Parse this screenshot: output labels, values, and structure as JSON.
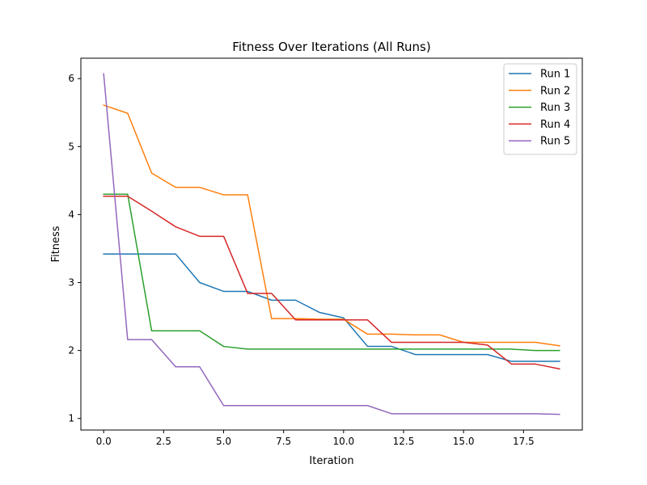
{
  "chart_data": {
    "type": "line",
    "title": "Fitness Over Iterations (All Runs)",
    "xlabel": "Iteration",
    "ylabel": "Fitness",
    "xlim": [
      -0.95,
      19.95
    ],
    "ylim": [
      0.83,
      6.3
    ],
    "xticks": [
      0,
      2.5,
      5,
      7.5,
      10,
      12.5,
      15,
      17.5
    ],
    "xtick_labels": [
      "0.0",
      "2.5",
      "5.0",
      "7.5",
      "10.0",
      "12.5",
      "15.0",
      "17.5"
    ],
    "yticks": [
      1,
      2,
      3,
      4,
      5,
      6
    ],
    "ytick_labels": [
      "1",
      "2",
      "3",
      "4",
      "5",
      "6"
    ],
    "grid": false,
    "legend_position": "top-right",
    "x": [
      0,
      1,
      2,
      3,
      4,
      5,
      6,
      7,
      8,
      9,
      10,
      11,
      12,
      13,
      14,
      15,
      16,
      17,
      18,
      19
    ],
    "series": [
      {
        "name": "Run 1",
        "color": "#1f77b4",
        "values": [
          3.42,
          3.42,
          3.42,
          3.42,
          3.0,
          2.87,
          2.87,
          2.74,
          2.74,
          2.56,
          2.48,
          2.06,
          2.06,
          1.94,
          1.94,
          1.94,
          1.94,
          1.84,
          1.84,
          1.84
        ]
      },
      {
        "name": "Run 2",
        "color": "#ff7f0e",
        "values": [
          5.61,
          5.49,
          4.61,
          4.4,
          4.4,
          4.29,
          4.29,
          2.47,
          2.47,
          2.46,
          2.46,
          2.24,
          2.24,
          2.23,
          2.23,
          2.12,
          2.12,
          2.12,
          2.12,
          2.07
        ]
      },
      {
        "name": "Run 3",
        "color": "#2ca02c",
        "values": [
          4.3,
          4.3,
          2.29,
          2.29,
          2.29,
          2.06,
          2.02,
          2.02,
          2.02,
          2.02,
          2.02,
          2.02,
          2.02,
          2.02,
          2.02,
          2.02,
          2.02,
          2.02,
          2.0,
          2.0
        ]
      },
      {
        "name": "Run 4",
        "color": "#d62728",
        "values": [
          4.27,
          4.27,
          4.05,
          3.82,
          3.68,
          3.68,
          2.84,
          2.84,
          2.45,
          2.45,
          2.45,
          2.45,
          2.12,
          2.12,
          2.12,
          2.12,
          2.08,
          1.8,
          1.8,
          1.73
        ]
      },
      {
        "name": "Run 5",
        "color": "#9467bd",
        "values": [
          6.07,
          2.16,
          2.16,
          1.76,
          1.76,
          1.19,
          1.19,
          1.19,
          1.19,
          1.19,
          1.19,
          1.19,
          1.07,
          1.07,
          1.07,
          1.07,
          1.07,
          1.07,
          1.07,
          1.06
        ]
      }
    ]
  }
}
